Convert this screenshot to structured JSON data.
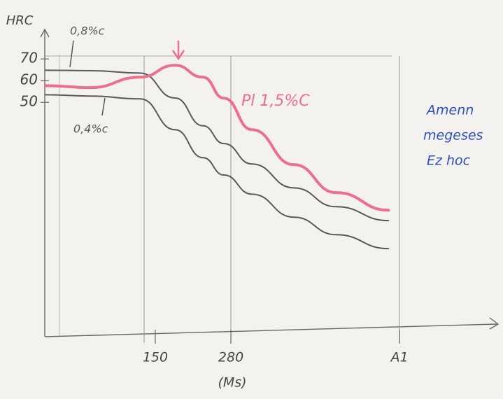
{
  "chart_data": {
    "type": "line",
    "y_label": "HRC",
    "x": [
      -39,
      39,
      124,
      184,
      232,
      268,
      316,
      388,
      461,
      551
    ],
    "series": [
      {
        "name": "0,8%c",
        "color": "#58585c",
        "values": [
          64.8,
          64.6,
          63.5,
          52,
          39.2,
          31,
          21.6,
          10.6,
          1.9,
          -4.5
        ]
      },
      {
        "name": "0,4%c",
        "color": "#58585c",
        "values": [
          53.5,
          52.9,
          51.6,
          37.4,
          24.5,
          16.5,
          7.7,
          -2.9,
          -11,
          -17.4
        ]
      },
      {
        "name": "Pl 1,5%C",
        "color": "#ec6f8c",
        "values": [
          57.7,
          56.8,
          61.6,
          67.1,
          61.6,
          51.9,
          37.4,
          21.3,
          8.4,
          0.3
        ]
      }
    ],
    "xlim": [
      -40,
      725
    ],
    "xticks": [
      150,
      280,
      {
        "value": 570,
        "label": "A1"
      }
    ],
    "x_tick_note": "(Ms)",
    "ylim": [
      -58,
      82
    ],
    "yticks": [
      50,
      60,
      70
    ],
    "grid": "x",
    "annotations": [
      "Amenn",
      "megeses",
      "Ez hoc"
    ]
  }
}
